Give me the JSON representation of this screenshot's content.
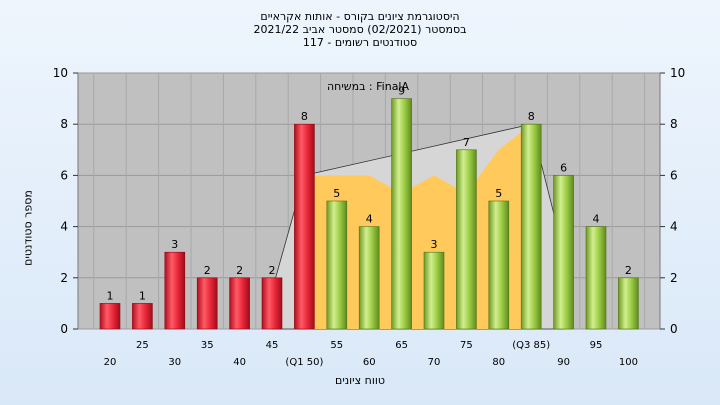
{
  "chart_data": {
    "type": "bar",
    "title_lines": [
      "היסטוגרמת ציונים בקורס - אותות אקראיים",
      "בסמסטר (02/2021) סמסטר אביב 2021/22",
      "סטודנטים רשומים - 117"
    ],
    "xlabel": "טווח ציונים",
    "ylabel": "מספר סטודנטים",
    "annotation": "במשיחה : FinalA",
    "ylim": [
      0,
      10
    ],
    "yticks": [
      0,
      2,
      4,
      6,
      8,
      10
    ],
    "x_tick_labels": [
      "20",
      "25",
      "30",
      "35",
      "40",
      "45",
      "(Q1 50)",
      "55",
      "60",
      "65",
      "70",
      "75",
      "80",
      "(Q3 85)",
      "90",
      "95",
      "100"
    ],
    "values": [
      1,
      1,
      3,
      2,
      2,
      2,
      8,
      5,
      4,
      9,
      3,
      7,
      5,
      8,
      6,
      4,
      2
    ],
    "value_labels": [
      "1",
      "1",
      "3",
      "2",
      "2",
      "2",
      "8",
      "5",
      "4",
      "9",
      "3",
      "7",
      "5",
      "8",
      "6",
      "4",
      "2"
    ],
    "bar_colors": [
      "#e8283a",
      "#e8283a",
      "#e8283a",
      "#e8283a",
      "#e8283a",
      "#e8283a",
      "#e8283a",
      "#9ccc45",
      "#9ccc45",
      "#9ccc45",
      "#9ccc45",
      "#9ccc45",
      "#9ccc45",
      "#9ccc45",
      "#9ccc45",
      "#9ccc45",
      "#9ccc45"
    ],
    "grid": true,
    "colors": {
      "plot_background": "#c0c0c0",
      "red_bar": "#e8283a",
      "green_bar": "#9ccc45",
      "iqr_area": "#ffc95c",
      "grey_area": "#d6d6d6"
    },
    "iqr_area": {
      "x": [
        50,
        55,
        60,
        65,
        70,
        75,
        80,
        85
      ],
      "y": [
        6,
        6,
        6,
        5.3,
        6,
        5.3,
        7,
        8
      ]
    },
    "grey_area": {
      "x": [
        45,
        50,
        85,
        90
      ],
      "y": [
        1.5,
        6,
        8,
        3
      ]
    }
  }
}
